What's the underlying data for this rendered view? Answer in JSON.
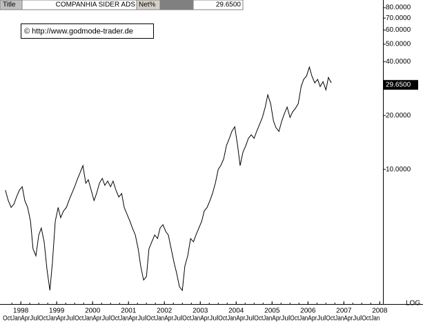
{
  "header": {
    "title_label": "Title",
    "name": "COMPANHIA SIDER ADS",
    "net_label": "Net%",
    "value": "29.6500"
  },
  "chart_data": {
    "type": "line",
    "watermark": "© http://www.godmode-trader.de",
    "log_label": "LOG",
    "ylog": true,
    "grid": false,
    "x": [
      1997.57,
      1997.65,
      1997.73,
      1997.81,
      1997.88,
      1997.96,
      1998.04,
      1998.11,
      1998.19,
      1998.27,
      1998.34,
      1998.42,
      1998.5,
      1998.57,
      1998.65,
      1998.73,
      1998.81,
      1998.88,
      1998.96,
      1999.04,
      1999.11,
      1999.19,
      1999.27,
      1999.34,
      1999.42,
      1999.5,
      1999.57,
      1999.65,
      1999.73,
      1999.81,
      1999.88,
      1999.96,
      2000.04,
      2000.11,
      2000.19,
      2000.27,
      2000.34,
      2000.42,
      2000.5,
      2000.57,
      2000.65,
      2000.73,
      2000.81,
      2000.88,
      2000.96,
      2001.04,
      2001.11,
      2001.19,
      2001.27,
      2001.34,
      2001.42,
      2001.5,
      2001.57,
      2001.65,
      2001.73,
      2001.81,
      2001.88,
      2001.96,
      2002.04,
      2002.11,
      2002.19,
      2002.27,
      2002.34,
      2002.42,
      2002.5,
      2002.57,
      2002.65,
      2002.73,
      2002.81,
      2002.88,
      2002.96,
      2003.04,
      2003.11,
      2003.19,
      2003.27,
      2003.34,
      2003.42,
      2003.5,
      2003.57,
      2003.65,
      2003.73,
      2003.81,
      2003.88,
      2003.96,
      2004.04,
      2004.11,
      2004.19,
      2004.27,
      2004.34,
      2004.42,
      2004.5,
      2004.57,
      2004.65,
      2004.73,
      2004.81,
      2004.88,
      2004.96,
      2005.04,
      2005.11,
      2005.19,
      2005.27,
      2005.34,
      2005.42,
      2005.5,
      2005.57,
      2005.65,
      2005.73,
      2005.81,
      2005.88,
      2005.96,
      2006.04,
      2006.11,
      2006.19,
      2006.27,
      2006.34,
      2006.42,
      2006.5,
      2006.57,
      2006.65
    ],
    "series": [
      {
        "color": "#000000",
        "values": [
          7.66,
          6.7,
          6.13,
          6.41,
          7.01,
          7.66,
          8.0,
          6.7,
          6.13,
          5.13,
          3.6,
          3.29,
          4.3,
          4.7,
          3.94,
          2.75,
          2.11,
          3.01,
          5.13,
          6.13,
          5.37,
          5.86,
          6.13,
          6.7,
          7.33,
          8.0,
          8.75,
          9.57,
          10.5,
          8.37,
          8.75,
          7.66,
          6.7,
          7.33,
          8.37,
          8.91,
          8.15,
          8.6,
          8.0,
          8.6,
          7.66,
          7.01,
          7.33,
          6.13,
          5.61,
          5.13,
          4.7,
          4.3,
          3.6,
          2.88,
          2.41,
          2.52,
          3.6,
          3.94,
          4.3,
          4.11,
          4.7,
          4.91,
          4.49,
          4.3,
          3.6,
          3.01,
          2.64,
          2.21,
          2.11,
          2.88,
          3.29,
          4.11,
          3.94,
          4.3,
          4.7,
          5.13,
          5.86,
          6.13,
          6.7,
          7.33,
          8.37,
          10,
          10.5,
          11.4,
          13.6,
          14.9,
          16.3,
          17.3,
          13.6,
          10.5,
          12.5,
          13.6,
          14.9,
          15.6,
          14.9,
          16.3,
          17.8,
          19.5,
          22.3,
          26.1,
          23.3,
          18.6,
          17.1,
          16.3,
          18.6,
          20.4,
          22.3,
          19.5,
          20.9,
          21.9,
          23.3,
          29.0,
          31.8,
          33.2,
          37.3,
          33.2,
          30.4,
          31.8,
          29.0,
          30.9,
          27.8,
          32.6,
          30.4
        ]
      }
    ],
    "last_price": {
      "value": 29.65,
      "label": "29.6500"
    },
    "xlim": [
      1997.42,
      2008.09
    ],
    "xticks": [
      1998,
      1999,
      2000,
      2001,
      2002,
      2003,
      2004,
      2005,
      2006,
      2007,
      2008
    ],
    "xminorticks": [
      {
        "value": 1997.75,
        "label": "Oct"
      },
      {
        "value": 1998,
        "label": "Jan"
      },
      {
        "value": 1998.25,
        "label": "Apr"
      },
      {
        "value": 1998.5,
        "label": "Jul"
      },
      {
        "value": 1998.75,
        "label": "Oct"
      },
      {
        "value": 1999,
        "label": "Jan"
      },
      {
        "value": 1999.25,
        "label": "Apr"
      },
      {
        "value": 1999.5,
        "label": "Jul"
      },
      {
        "value": 1999.75,
        "label": "Oct"
      },
      {
        "value": 2000,
        "label": "Jan"
      },
      {
        "value": 2000.25,
        "label": "Apr"
      },
      {
        "value": 2000.5,
        "label": "Jul"
      },
      {
        "value": 2000.75,
        "label": "Oct"
      },
      {
        "value": 2001,
        "label": "Jan"
      },
      {
        "value": 2001.25,
        "label": "Apr"
      },
      {
        "value": 2001.5,
        "label": "Jul"
      },
      {
        "value": 2001.75,
        "label": "Oct"
      },
      {
        "value": 2002,
        "label": "Jan"
      },
      {
        "value": 2002.25,
        "label": "Apr"
      },
      {
        "value": 2002.5,
        "label": "Jul"
      },
      {
        "value": 2002.75,
        "label": "Oct"
      },
      {
        "value": 2003,
        "label": "Jan"
      },
      {
        "value": 2003.25,
        "label": "Apr"
      },
      {
        "value": 2003.5,
        "label": "Jul"
      },
      {
        "value": 2003.75,
        "label": "Oct"
      },
      {
        "value": 2004,
        "label": "Jan"
      },
      {
        "value": 2004.25,
        "label": "Apr"
      },
      {
        "value": 2004.5,
        "label": "Jul"
      },
      {
        "value": 2004.75,
        "label": "Oct"
      },
      {
        "value": 2005,
        "label": "Jan"
      },
      {
        "value": 2005.25,
        "label": "Apr"
      },
      {
        "value": 2005.5,
        "label": "Jul"
      },
      {
        "value": 2005.75,
        "label": "Oct"
      },
      {
        "value": 2006,
        "label": "Jan"
      },
      {
        "value": 2006.25,
        "label": "Apr"
      },
      {
        "value": 2006.5,
        "label": "Jul"
      },
      {
        "value": 2006.75,
        "label": "Oct"
      },
      {
        "value": 2007,
        "label": "Jan"
      },
      {
        "value": 2007.25,
        "label": "Apr"
      },
      {
        "value": 2007.5,
        "label": "Jul"
      },
      {
        "value": 2007.75,
        "label": "Oct"
      },
      {
        "value": 2008,
        "label": "Jan"
      }
    ],
    "ylim": [
      1.77,
      88.3
    ],
    "yticks": [
      {
        "value": 10,
        "label": "10.0000"
      },
      {
        "value": 20,
        "label": "20.0000"
      },
      {
        "value": 40,
        "label": "40.0000"
      },
      {
        "value": 50,
        "label": "50.0000"
      },
      {
        "value": 60,
        "label": "60.0000"
      },
      {
        "value": 70,
        "label": "70.0000"
      },
      {
        "value": 80,
        "label": "80.0000"
      }
    ]
  }
}
